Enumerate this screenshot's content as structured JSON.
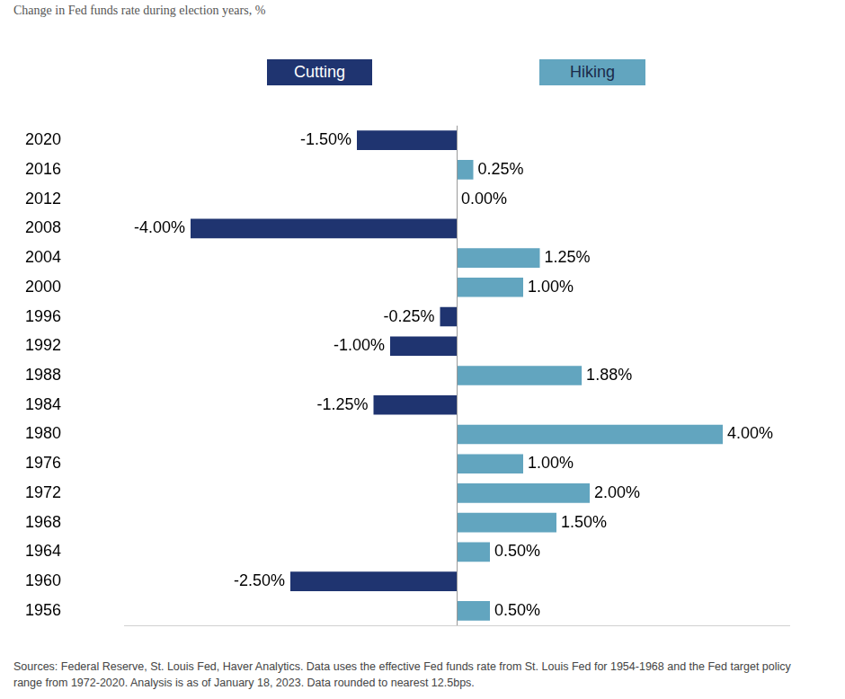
{
  "chart_data": {
    "type": "bar",
    "title": "Change in Fed funds rate during election years, %",
    "note": "Sources: Federal Reserve, St. Louis Fed, Haver Analytics. Data uses the effective Fed funds rate from St. Louis Fed for 1954-1968 and the Fed target policy range from 1972-2020. Analysis is as of January 18, 2023. Data rounded to nearest 12.5bps.",
    "annotations": [
      {
        "text": "Cutting",
        "color": "#1f3470"
      },
      {
        "text": "Hiking",
        "color": "#62a5bf"
      }
    ],
    "orientation": "horizontal",
    "categories": [
      "2020",
      "2016",
      "2012",
      "2008",
      "2004",
      "2000",
      "1996",
      "1992",
      "1988",
      "1984",
      "1980",
      "1976",
      "1972",
      "1968",
      "1964",
      "1960",
      "1956"
    ],
    "values": [
      -1.5,
      0.25,
      0,
      -4,
      1.25,
      1,
      -0.25,
      -1,
      1.88,
      -1.25,
      4,
      1,
      2,
      1.5,
      0.5,
      -2.5,
      0.5
    ],
    "value_labels": [
      "-1.50%",
      "0.25%",
      "0.00%",
      "-4.00%",
      "1.25%",
      "1.00%",
      "-0.25%",
      "-1.00%",
      "1.88%",
      "-1.25%",
      "4.00%",
      "1.00%",
      "2.00%",
      "1.50%",
      "0.50%",
      "-2.50%",
      "0.50%"
    ],
    "colors": [
      "#1f3470",
      "#62a5bf",
      "#62a5bf",
      "#1f3470",
      "#62a5bf",
      "#62a5bf",
      "#1f3470",
      "#1f3470",
      "#62a5bf",
      "#1f3470",
      "#62a5bf",
      "#62a5bf",
      "#62a5bf",
      "#62a5bf",
      "#62a5bf",
      "#1f3470",
      "#62a5bf"
    ],
    "xlim": [
      -5,
      5
    ],
    "data_labels": true,
    "tick_labels": "y",
    "grid": false
  }
}
